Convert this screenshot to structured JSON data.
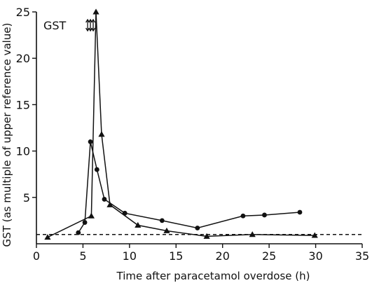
{
  "chart_data": {
    "type": "line",
    "panel_label": "GST",
    "xlabel": "Time after paracetamol overdose (h)",
    "ylabel": "GST (as multiple of upper reference value)",
    "xlim": [
      0,
      35
    ],
    "ylim": [
      0,
      25
    ],
    "xticks": [
      0,
      5,
      10,
      15,
      20,
      25,
      30,
      35
    ],
    "yticks": [
      5,
      10,
      15,
      20,
      25
    ],
    "grid": false,
    "reference_line": {
      "y": 1,
      "style": "dashed"
    },
    "arrows_at_x": [
      5.5,
      5.8,
      6.1
    ],
    "series": [
      {
        "marker": "circle",
        "points": [
          [
            4.5,
            1.2
          ],
          [
            5.2,
            2.3
          ],
          [
            5.8,
            11.0
          ],
          [
            6.5,
            8.0
          ],
          [
            7.3,
            4.8
          ],
          [
            9.5,
            3.3
          ],
          [
            13.5,
            2.5
          ],
          [
            17.3,
            1.7
          ],
          [
            22.2,
            3.0
          ],
          [
            24.5,
            3.1
          ],
          [
            28.3,
            3.4
          ]
        ]
      },
      {
        "marker": "triangle",
        "points": [
          [
            1.2,
            0.7
          ],
          [
            5.9,
            3.0
          ],
          [
            6.4,
            25.0
          ],
          [
            7.0,
            11.8
          ],
          [
            7.9,
            4.2
          ],
          [
            10.9,
            2.0
          ],
          [
            14.0,
            1.4
          ],
          [
            18.3,
            0.8
          ],
          [
            23.2,
            1.0
          ],
          [
            29.9,
            0.9
          ]
        ]
      }
    ]
  }
}
